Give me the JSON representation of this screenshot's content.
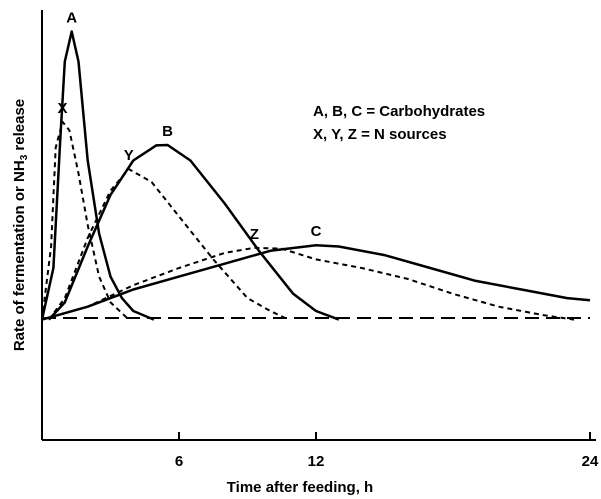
{
  "chart_data": {
    "type": "line",
    "y_label": {
      "before": "Rate of fermentation or NH",
      "sub": "3",
      "after": " release"
    },
    "x_label": "Time after feeding, h",
    "annotations": [
      "A, B, C = Carbohydrates",
      "X, Y, Z = N sources"
    ],
    "xlim": [
      0,
      24
    ],
    "xticks": [
      6,
      12,
      24
    ],
    "ylim": [
      0,
      100
    ],
    "series": [
      {
        "name": "A",
        "color": "#000000",
        "dash": "solid",
        "x": [
          0,
          0.5,
          0.8,
          1.0,
          1.3,
          1.6,
          2.0,
          2.5,
          3,
          3.5,
          4,
          4.9
        ],
        "values": [
          28,
          40,
          70,
          88,
          95,
          88,
          65,
          48,
          38,
          33,
          30,
          28
        ]
      },
      {
        "name": "X",
        "color": "#000000",
        "dash": "dashed",
        "x": [
          0,
          0.4,
          0.6,
          0.9,
          1.2,
          1.6,
          2,
          2.5,
          3,
          3.8
        ],
        "values": [
          28,
          45,
          68,
          74,
          72,
          62,
          50,
          38,
          32,
          28
        ]
      },
      {
        "name": "B",
        "color": "#000000",
        "dash": "solid",
        "x": [
          0.3,
          1,
          2,
          3,
          4,
          5,
          5.5,
          6.5,
          8,
          9.5,
          11,
          12,
          13
        ],
        "values": [
          28,
          32,
          45,
          57,
          65,
          68.5,
          68.6,
          65,
          55,
          44,
          34,
          30,
          28
        ]
      },
      {
        "name": "Y",
        "color": "#000000",
        "dash": "dashed",
        "x": [
          0.3,
          1,
          2,
          3,
          3.8,
          4.8,
          6,
          7.5,
          9,
          10,
          10.8
        ],
        "values": [
          28,
          33,
          47,
          58,
          63,
          60,
          52,
          42,
          33,
          30,
          28
        ]
      },
      {
        "name": "C",
        "color": "#000000",
        "dash": "solid",
        "x": [
          0,
          2,
          4,
          6,
          8,
          10,
          12,
          13,
          15,
          17,
          19,
          21,
          23,
          24
        ],
        "values": [
          28,
          31,
          35,
          38,
          41,
          44,
          45.3,
          45,
          43,
          40,
          37,
          35,
          33,
          32.5
        ]
      },
      {
        "name": "Z",
        "color": "#000000",
        "dash": "dashed",
        "x": [
          0,
          2,
          4,
          6,
          8,
          9.3,
          10.5,
          12,
          14,
          16,
          18,
          20,
          22,
          23.3
        ],
        "values": [
          28,
          31,
          36,
          40,
          43.5,
          44.7,
          44.5,
          42,
          40,
          37.5,
          34,
          31,
          29,
          28
        ]
      }
    ]
  }
}
